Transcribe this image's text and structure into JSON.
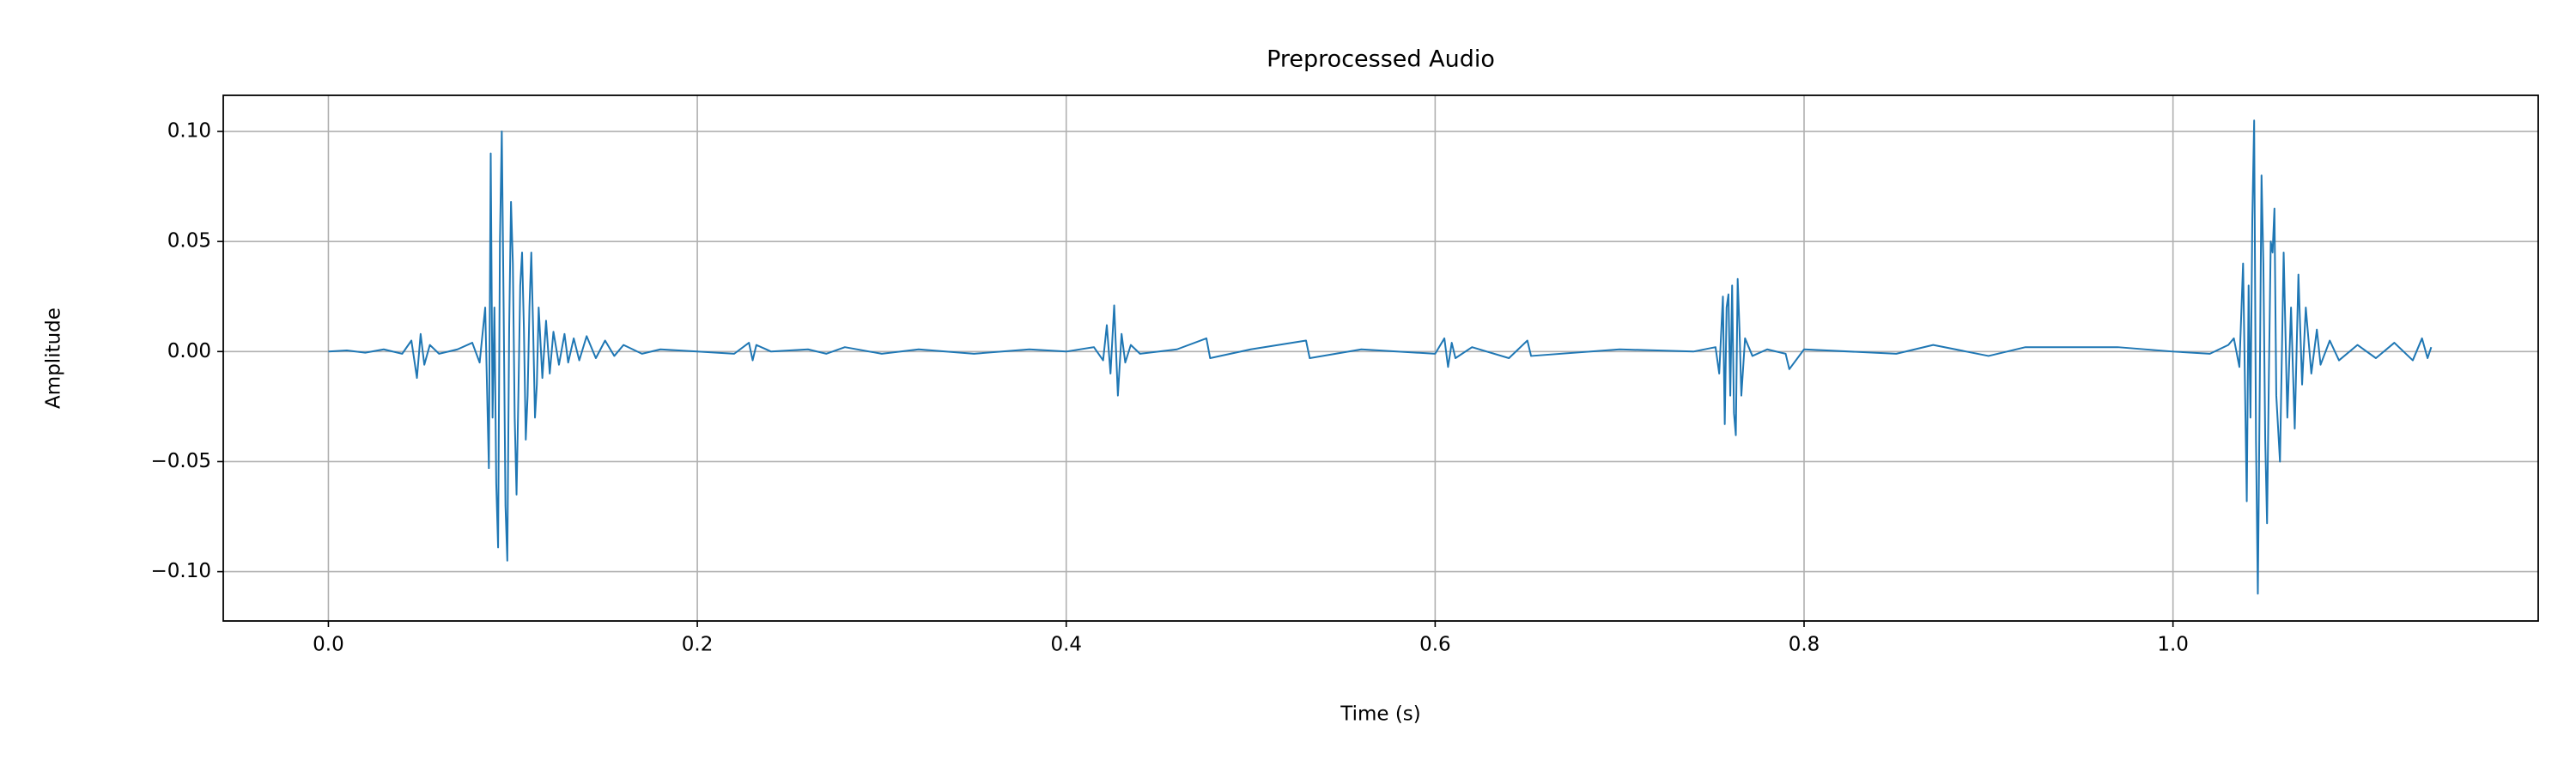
{
  "chart_data": {
    "type": "line",
    "title": "Preprocessed Audio",
    "x_label": "Time (s)",
    "y_label": "Amplitude",
    "color": "#1f77b4",
    "grid": true,
    "xlim": [
      -0.057,
      1.198
    ],
    "ylim": [
      -0.1224,
      0.1164
    ],
    "xticks": [
      {
        "value": 0,
        "label": "0.0"
      },
      0.2,
      0.4,
      0.6,
      0.8,
      {
        "value": 1,
        "label": "1.0"
      }
    ],
    "yticks": [
      {
        "value": -0.1,
        "label": "−0.10"
      },
      {
        "value": -0.05,
        "label": "−0.05"
      },
      {
        "value": 0,
        "label": "0.00"
      },
      0.05,
      {
        "value": 0.1,
        "label": "0.10"
      }
    ],
    "x": [
      0,
      0.01,
      0.02,
      0.03,
      0.04,
      0.045,
      0.048,
      0.05,
      0.052,
      0.055,
      0.06,
      0.07,
      0.078,
      0.082,
      0.085,
      0.087,
      0.088,
      0.089,
      0.09,
      0.091,
      0.092,
      0.093,
      0.094,
      0.095,
      0.096,
      0.097,
      0.098,
      0.099,
      0.1,
      0.101,
      0.102,
      0.103,
      0.104,
      0.105,
      0.106,
      0.107,
      0.108,
      0.109,
      0.11,
      0.111,
      0.112,
      0.113,
      0.114,
      0.116,
      0.118,
      0.12,
      0.122,
      0.125,
      0.128,
      0.13,
      0.133,
      0.136,
      0.14,
      0.145,
      0.15,
      0.155,
      0.16,
      0.17,
      0.18,
      0.2,
      0.22,
      0.228,
      0.23,
      0.232,
      0.24,
      0.26,
      0.27,
      0.28,
      0.3,
      0.32,
      0.35,
      0.38,
      0.4,
      0.415,
      0.42,
      0.422,
      0.424,
      0.426,
      0.428,
      0.43,
      0.432,
      0.435,
      0.44,
      0.46,
      0.476,
      0.478,
      0.5,
      0.53,
      0.532,
      0.56,
      0.6,
      0.605,
      0.607,
      0.609,
      0.611,
      0.62,
      0.64,
      0.65,
      0.652,
      0.7,
      0.74,
      0.752,
      0.754,
      0.756,
      0.757,
      0.758,
      0.759,
      0.76,
      0.761,
      0.762,
      0.763,
      0.764,
      0.765,
      0.766,
      0.768,
      0.772,
      0.78,
      0.79,
      0.792,
      0.8,
      0.85,
      0.87,
      0.9,
      0.92,
      0.97,
      1.0,
      1.02,
      1.03,
      1.033,
      1.036,
      1.038,
      1.04,
      1.041,
      1.042,
      1.043,
      1.044,
      1.045,
      1.046,
      1.047,
      1.048,
      1.049,
      1.05,
      1.051,
      1.052,
      1.053,
      1.054,
      1.055,
      1.056,
      1.058,
      1.06,
      1.062,
      1.064,
      1.066,
      1.068,
      1.07,
      1.072,
      1.075,
      1.078,
      1.08,
      1.085,
      1.09,
      1.1,
      1.11,
      1.12,
      1.13,
      1.135,
      1.138,
      1.14
    ],
    "values": [
      0,
      0.0005,
      -0.0005,
      0.001,
      -0.001,
      0.005,
      -0.012,
      0.008,
      -0.006,
      0.003,
      -0.001,
      0.001,
      0.004,
      -0.005,
      0.02,
      -0.053,
      0.09,
      -0.03,
      0.02,
      -0.06,
      -0.089,
      0.05,
      0.1,
      0.02,
      -0.07,
      -0.095,
      0.01,
      0.068,
      0.04,
      -0.03,
      -0.065,
      -0.02,
      0.03,
      0.045,
      0.01,
      -0.04,
      -0.02,
      0.02,
      0.045,
      0.01,
      -0.03,
      -0.015,
      0.02,
      -0.012,
      0.014,
      -0.01,
      0.009,
      -0.006,
      0.008,
      -0.005,
      0.006,
      -0.004,
      0.007,
      -0.003,
      0.005,
      -0.002,
      0.003,
      -0.001,
      0.001,
      0,
      -0.001,
      0.004,
      -0.004,
      0.003,
      0,
      0.001,
      -0.001,
      0.002,
      -0.001,
      0.001,
      -0.001,
      0.001,
      0,
      0.002,
      -0.004,
      0.012,
      -0.01,
      0.021,
      -0.02,
      0.008,
      -0.005,
      0.003,
      -0.001,
      0.001,
      0.006,
      -0.003,
      0.001,
      0.005,
      -0.003,
      0.001,
      -0.001,
      0.006,
      -0.007,
      0.004,
      -0.003,
      0.002,
      -0.003,
      0.005,
      -0.002,
      0.001,
      0,
      0.002,
      -0.01,
      0.025,
      -0.033,
      0.02,
      0.026,
      -0.02,
      0.03,
      -0.028,
      -0.038,
      0.033,
      0.01,
      -0.02,
      0.006,
      -0.002,
      0.001,
      -0.001,
      -0.008,
      0.001,
      -0.001,
      0.003,
      -0.002,
      0.002,
      0.002,
      0,
      -0.001,
      0.003,
      0.006,
      -0.007,
      0.04,
      -0.068,
      0.03,
      -0.03,
      0.06,
      0.105,
      -0.04,
      -0.11,
      -0.02,
      0.08,
      0.04,
      -0.04,
      -0.078,
      -0.01,
      0.05,
      0.045,
      0.065,
      -0.02,
      -0.05,
      0.045,
      -0.03,
      0.02,
      -0.035,
      0.035,
      -0.015,
      0.02,
      -0.01,
      0.01,
      -0.006,
      0.005,
      -0.004,
      0.003,
      -0.003,
      0.004,
      -0.004,
      0.006,
      -0.003,
      0.002
    ]
  }
}
